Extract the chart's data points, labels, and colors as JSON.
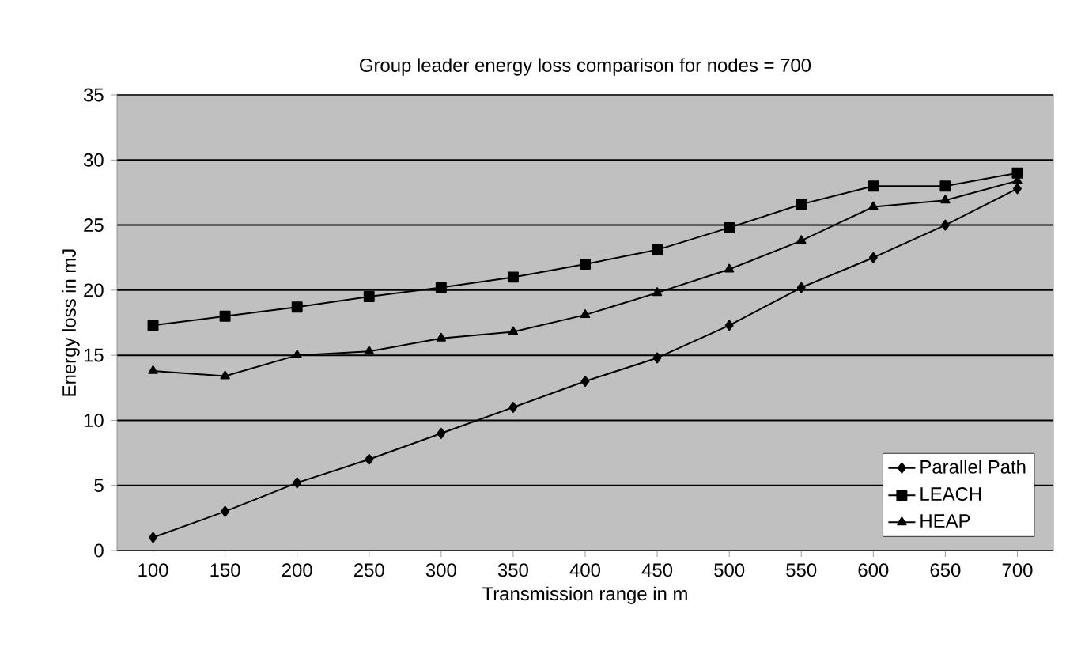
{
  "chart_data": {
    "type": "line",
    "title": "Group leader energy loss comparison for nodes = 700",
    "xlabel": "Transmission range in m",
    "ylabel": "Energy loss in mJ",
    "categories": [
      "100",
      "150",
      "200",
      "250",
      "300",
      "350",
      "400",
      "450",
      "500",
      "550",
      "600",
      "650",
      "700"
    ],
    "series": [
      {
        "name": "Parallel Path",
        "color": "#000000",
        "marker": "diamond",
        "values": [
          1,
          3,
          5.2,
          7,
          9,
          11,
          13,
          14.8,
          17.3,
          20.2,
          22.5,
          25,
          27.8
        ]
      },
      {
        "name": "LEACH",
        "color": "#000000",
        "marker": "square",
        "values": [
          17.3,
          18,
          18.7,
          19.5,
          20.2,
          21,
          22,
          23.1,
          24.8,
          26.6,
          28,
          28,
          29
        ]
      },
      {
        "name": "HEAP",
        "color": "#000000",
        "marker": "triangle",
        "values": [
          13.8,
          13.4,
          15,
          15.3,
          16.3,
          16.8,
          18.1,
          19.8,
          21.6,
          23.8,
          26.4,
          26.9,
          28.4
        ]
      }
    ],
    "ylim": [
      0,
      35
    ],
    "yticks": [
      0,
      5,
      10,
      15,
      20,
      25,
      30,
      35
    ],
    "grid": "y",
    "legend": "bottom right"
  }
}
